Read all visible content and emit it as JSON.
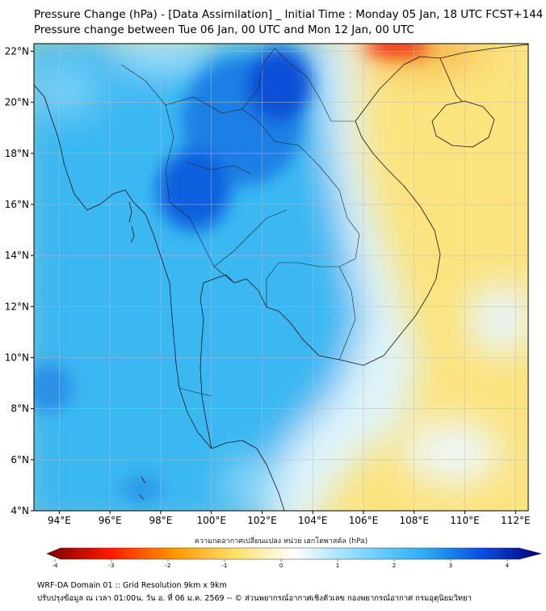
{
  "header": {
    "title_line1": "Pressure Change (hPa) - [Data Assimilation] _ Initial Time : Monday 05 Jan, 18 UTC FCST+144",
    "title_line2": "Pressure change between Tue 06 Jan, 00 UTC and Mon 12 Jan, 00 UTC"
  },
  "map": {
    "lat_labels": [
      "22°N",
      "20°N",
      "18°N",
      "16°N",
      "14°N",
      "12°N",
      "10°N",
      "8°N",
      "6°N",
      "4°N"
    ],
    "lon_labels": [
      "94°E",
      "96°E",
      "98°E",
      "100°E",
      "102°E",
      "104°E",
      "106°E",
      "108°E",
      "110°E",
      "112°E"
    ],
    "lat_range": [
      4,
      22.3
    ],
    "lon_range": [
      93,
      112.5
    ],
    "gridlines": true
  },
  "colorbar": {
    "label": "ความกดอากาศเปลี่ยนแปลง หน่วย เฮกโตพาสคัล (hPa)",
    "ticks": [
      "-4",
      "-3",
      "-2",
      "-1",
      "0",
      "1",
      "2",
      "3",
      "4"
    ],
    "range": [
      -4,
      4
    ],
    "colors": {
      "min": "#7a0000",
      "neg_mid": "#ff2200",
      "neg_low": "#ffcc33",
      "zero": "#ffffff",
      "pos_low": "#66ccff",
      "pos_mid": "#0a55e0",
      "max": "#00007a"
    }
  },
  "footer": {
    "line1": "WRF-DA Domain 01 :: Grid Resolution 9km x 9km",
    "line2": "ปรับปรุงข้อมูล ณ เวลา 01:00น. วัน อ. ที่ 06 ม.ค. 2569 -- © ส่วนพยากรณ์อากาศเชิงตัวเลข กองพยากรณ์อากาศ กรมอุตุนิยมวิทยา"
  }
}
